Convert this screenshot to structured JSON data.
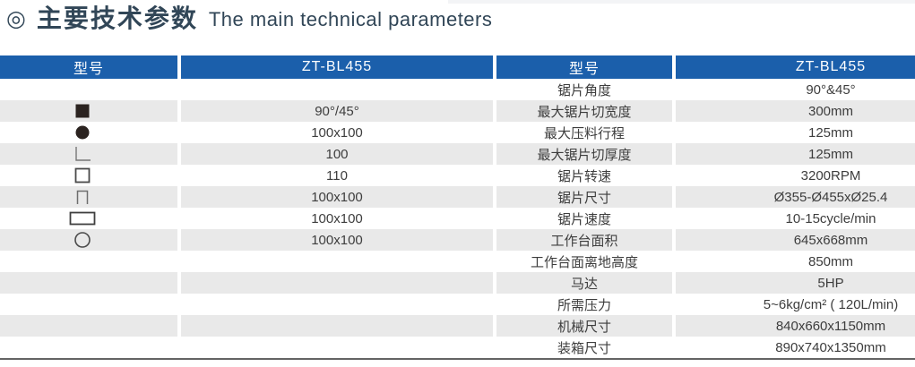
{
  "title": {
    "bullet": "◎",
    "zh": "主要技术参数",
    "en": "The main technical parameters"
  },
  "colors": {
    "header_blue": "#1b5fab",
    "stripe_gray": "#e9e9e9",
    "title_color": "#314657",
    "text_color": "#3d3d3d",
    "icon_fill_dark": "#2b2320",
    "bottom_line_gray": "#636363"
  },
  "table": {
    "headers": [
      "型号",
      "ZT-BL455",
      "型号",
      "ZT-BL455"
    ],
    "rows": [
      {
        "icon": "",
        "left_value": "",
        "right_label": "锯片角度",
        "right_value": "90°&45°"
      },
      {
        "icon": "solid-square-icon",
        "left_value": "90°/45°",
        "right_label": "最大锯片切宽度",
        "right_value": "300mm"
      },
      {
        "icon": "solid-circle-icon",
        "left_value": "100x100",
        "right_label": "最大压料行程",
        "right_value": "125mm"
      },
      {
        "icon": "angle-icon",
        "left_value": "100",
        "right_label": "最大锯片切厚度",
        "right_value": "125mm"
      },
      {
        "icon": "square-tube-icon",
        "left_value": "110",
        "right_label": "锯片转速",
        "right_value": "3200RPM"
      },
      {
        "icon": "channel-icon",
        "left_value": "100x100",
        "right_label": "锯片尺寸",
        "right_value": "Ø355-Ø455xØ25.4"
      },
      {
        "icon": "rect-tube-icon",
        "left_value": "100x100",
        "right_label": "锯片速度",
        "right_value": "10-15cycle/min"
      },
      {
        "icon": "round-tube-icon",
        "left_value": "100x100",
        "right_label": "工作台面积",
        "right_value": "645x668mm"
      },
      {
        "icon": "",
        "left_value": "",
        "right_label": "工作台面离地高度",
        "right_value": "850mm"
      },
      {
        "icon": "",
        "left_value": "",
        "right_label": "马达",
        "right_value": "5HP"
      },
      {
        "icon": "",
        "left_value": "",
        "right_label": "所需压力",
        "right_value": "5~6kg/cm² ( 120L/min)"
      },
      {
        "icon": "",
        "left_value": "",
        "right_label": "机械尺寸",
        "right_value": "840x660x1150mm"
      },
      {
        "icon": "",
        "left_value": "",
        "right_label": "装箱尺寸",
        "right_value": "890x740x1350mm"
      }
    ]
  }
}
